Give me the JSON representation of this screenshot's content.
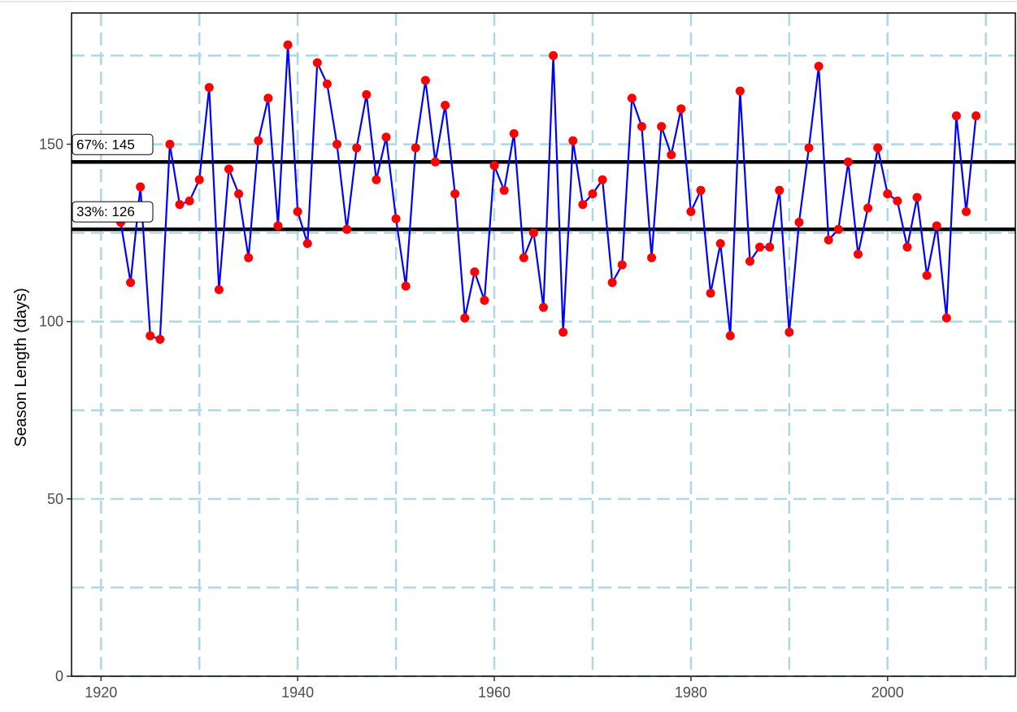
{
  "chart_data": {
    "type": "line",
    "title": "",
    "xlabel": "",
    "ylabel": "Season Length (days)",
    "xlim": [
      1917,
      2013
    ],
    "ylim": [
      0,
      187
    ],
    "x_ticks": [
      1920,
      1940,
      1960,
      1980,
      2000
    ],
    "y_ticks": [
      0,
      50,
      100,
      150
    ],
    "grid": true,
    "colors": {
      "line": "#0000ff",
      "points": "#ff0000",
      "grid": "#add8e6",
      "hlines": "#000000"
    },
    "series": [
      {
        "x": [
          1922,
          1923,
          1924,
          1925,
          1926,
          1927,
          1928,
          1929,
          1930,
          1931,
          1932,
          1933,
          1934,
          1935,
          1936,
          1937,
          1938,
          1939,
          1940,
          1941,
          1942,
          1943,
          1944,
          1945,
          1946,
          1947,
          1948,
          1949,
          1950,
          1951,
          1952,
          1953,
          1954,
          1955,
          1956,
          1957,
          1958,
          1959,
          1960,
          1961,
          1962,
          1963,
          1964,
          1965,
          1966,
          1967,
          1968,
          1969,
          1970,
          1971,
          1972,
          1973,
          1974,
          1975,
          1976,
          1977,
          1978,
          1979,
          1980,
          1981,
          1982,
          1983,
          1984,
          1985,
          1986,
          1987,
          1988,
          1989,
          1990,
          1991,
          1992,
          1993,
          1994,
          1995,
          1996,
          1997,
          1998,
          1999,
          2000,
          2001,
          2002,
          2003,
          2004,
          2005,
          2006,
          2007,
          2008,
          2009
        ],
        "y": [
          128,
          111,
          138,
          96,
          95,
          150,
          133,
          134,
          140,
          166,
          109,
          143,
          136,
          118,
          151,
          163,
          127,
          178,
          131,
          122,
          173,
          167,
          150,
          126,
          149,
          164,
          140,
          152,
          129,
          110,
          149,
          168,
          145,
          161,
          136,
          101,
          114,
          106,
          144,
          137,
          153,
          118,
          125,
          104,
          175,
          97,
          151,
          133,
          136,
          140,
          111,
          116,
          163,
          155,
          118,
          155,
          147,
          160,
          131,
          137,
          108,
          122,
          96,
          165,
          117,
          121,
          121,
          137,
          97,
          128,
          149,
          172,
          123,
          126,
          145,
          119,
          132,
          149,
          136,
          134,
          121,
          135,
          113,
          127,
          101,
          158,
          131,
          158
        ]
      }
    ],
    "hlines": [
      {
        "value": 145,
        "label": "67%: 145"
      },
      {
        "value": 126,
        "label": "33%: 126"
      }
    ]
  }
}
